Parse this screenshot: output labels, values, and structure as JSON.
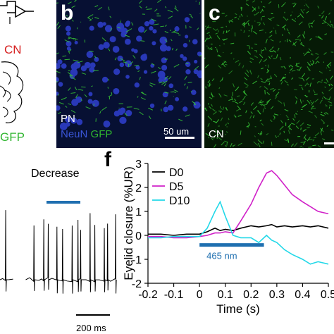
{
  "panel_a": {
    "cn_label": "CN",
    "gfp_label": "GFP"
  },
  "panel_b": {
    "letter": "b",
    "pn_label": "PN",
    "neun_label": "NeuN",
    "gfp_label": "GFP",
    "scalebar_label": "50 um",
    "colors": {
      "neun": "#2f3fd0",
      "gfp": "#35c035"
    }
  },
  "panel_c": {
    "letter": "c",
    "cn_label": "CN"
  },
  "panel_e": {
    "title": "Decrease",
    "scalebar_label": "200 ms",
    "stim_color": "#1f6fb0"
  },
  "panel_f": {
    "letter": "f",
    "stim_label": "465 nm",
    "stim_color": "#1f6fb0"
  },
  "chart_data": {
    "type": "line",
    "xlabel": "Time (s)",
    "ylabel": "Eyelid closure (%UR)",
    "xlim": [
      -0.2,
      0.5
    ],
    "ylim": [
      -2,
      3
    ],
    "x_ticks": [
      "-0.2",
      "-0.1",
      "0",
      "0.1",
      "0.2",
      "0.3",
      "0.4",
      "0.5"
    ],
    "y_ticks": [
      "-2",
      "-1",
      "0",
      "1",
      "2",
      "3"
    ],
    "legend_position": "top-left",
    "stimulus": {
      "label": "465 nm",
      "start": 0.0,
      "end": 0.25,
      "y": -0.4
    },
    "x": [
      -0.2,
      -0.15,
      -0.1,
      -0.05,
      0.0,
      0.03,
      0.06,
      0.08,
      0.1,
      0.13,
      0.16,
      0.2,
      0.23,
      0.26,
      0.28,
      0.3,
      0.33,
      0.36,
      0.4,
      0.43,
      0.46,
      0.5
    ],
    "series": [
      {
        "name": "D0",
        "color": "#000000",
        "values": [
          0.05,
          0.05,
          0.0,
          0.05,
          0.05,
          0.15,
          0.3,
          0.2,
          0.25,
          0.2,
          0.3,
          0.4,
          0.35,
          0.4,
          0.45,
          0.35,
          0.4,
          0.35,
          0.4,
          0.35,
          0.4,
          0.3
        ]
      },
      {
        "name": "D5",
        "color": "#d020c8",
        "values": [
          -0.05,
          -0.05,
          -0.1,
          -0.1,
          -0.05,
          0.0,
          0.1,
          0.1,
          0.15,
          0.1,
          0.6,
          1.3,
          2.0,
          2.6,
          2.7,
          2.5,
          2.1,
          1.7,
          1.4,
          1.2,
          1.0,
          0.9
        ]
      },
      {
        "name": "D10",
        "color": "#22d8e8",
        "values": [
          -0.1,
          -0.1,
          -0.05,
          -0.05,
          -0.05,
          0.3,
          1.0,
          1.4,
          0.8,
          0.0,
          -0.1,
          -0.1,
          -0.3,
          0.0,
          -0.2,
          -0.3,
          -0.6,
          -0.8,
          -1.0,
          -1.2,
          -1.1,
          -1.2
        ]
      }
    ]
  }
}
